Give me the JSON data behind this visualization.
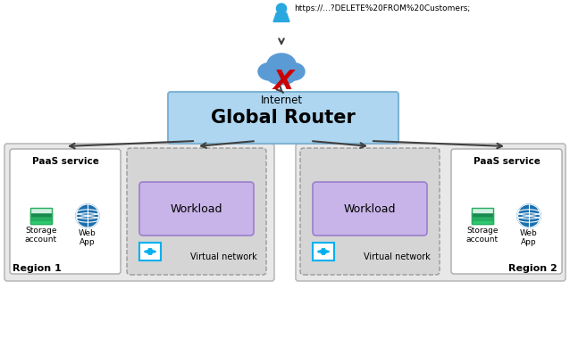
{
  "bg_color": "#ffffff",
  "url_text": "https://...?DELETE%20FROM%20Customers;",
  "internet_label": "Internet",
  "router_label": "Global Router",
  "region1_label": "Region 1",
  "region2_label": "Region 2",
  "paas_label": "PaaS service",
  "workload_label": "Workload",
  "virtual_network_label": "Virtual network",
  "storage_label": "Storage\naccount",
  "webapp_label": "Web\nApp",
  "router_box_color": "#aed6f1",
  "region_box_color": "#e8e8e8",
  "vnet_box_color": "#d5d5d5",
  "workload_box_color": "#c8b4e8",
  "workload_edge_color": "#9b7fcc",
  "paas_box_color": "#ffffff",
  "arrow_color": "#404040",
  "x_color": "#cc0000",
  "person_color": "#29a8e0",
  "cloud_color": "#5b9bd5",
  "vnet_icon_color": "#00b0f0",
  "storage_colors": [
    "#2ecc71",
    "#27ae60",
    "#1a8a50",
    "#d0f0e0"
  ],
  "globe_color": "#1a6faf"
}
